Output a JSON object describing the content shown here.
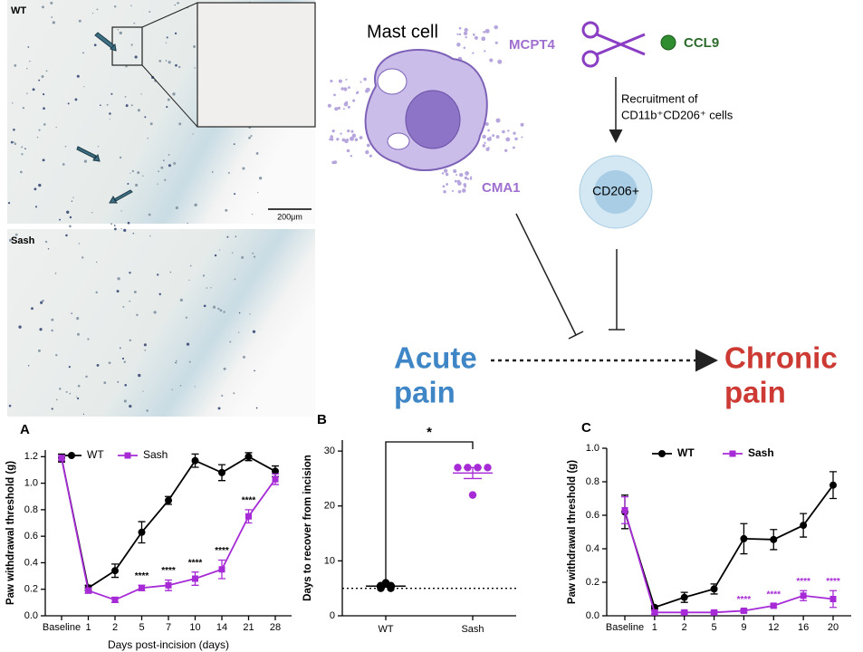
{
  "histology": {
    "top_label": "WT",
    "bottom_label": "Sash",
    "scale_bar": "200μm"
  },
  "diagram": {
    "mast_cell": "Mast cell",
    "mcpt4": "MCPT4",
    "ccl9": "CCL9",
    "cma1": "CMA1",
    "recruitment_line1": "Recruitment of",
    "recruitment_line2": "CD11b⁺CD206⁺ cells",
    "cd206": "CD206+",
    "acute_1": "Acute",
    "acute_2": "pain",
    "chronic_1": "Chronic",
    "chronic_2": "pain"
  },
  "chart_data": [
    {
      "type": "line",
      "panel": "A",
      "ylabel": "Paw withdrawal threshold (g)",
      "xlabel": "Days post-incision (days)",
      "categories": [
        "Baseline",
        "1",
        "2",
        "5",
        "7",
        "10",
        "14",
        "21",
        "28"
      ],
      "ylim": [
        0,
        1.25
      ],
      "yticks": [
        {
          "value": 0,
          "label": "0.0"
        },
        {
          "value": 0.2,
          "label": "0.2"
        },
        {
          "value": 0.4,
          "label": "0.4"
        },
        {
          "value": 0.6,
          "label": "0.6"
        },
        {
          "value": 0.8,
          "label": "0.8"
        },
        {
          "value": 1.0,
          "label": "1.0"
        },
        {
          "value": 1.2,
          "label": "1.2"
        }
      ],
      "legend": "top-left",
      "series": [
        {
          "name": "WT",
          "color": "#000000",
          "marker": "circle",
          "values": [
            1.19,
            0.21,
            0.34,
            0.63,
            0.87,
            1.17,
            1.08,
            1.2,
            1.09
          ],
          "errors": [
            0.03,
            0.02,
            0.05,
            0.08,
            0.03,
            0.05,
            0.06,
            0.03,
            0.04
          ]
        },
        {
          "name": "Sash",
          "color": "#a62bd6",
          "marker": "square",
          "values": [
            1.19,
            0.19,
            0.12,
            0.21,
            0.23,
            0.28,
            0.35,
            0.75,
            1.03
          ],
          "errors": [
            0.02,
            0.02,
            0.02,
            0.02,
            0.04,
            0.05,
            0.07,
            0.05,
            0.04
          ]
        }
      ],
      "annotation_color": "#000000",
      "annotations": [
        {
          "text": "****",
          "category": "5"
        },
        {
          "text": "****",
          "category": "7"
        },
        {
          "text": "****",
          "category": "10"
        },
        {
          "text": "****",
          "category": "14"
        },
        {
          "text": "****",
          "category": "21"
        }
      ]
    },
    {
      "type": "dot",
      "panel": "B",
      "ylabel": "Days to recover from incision",
      "categories": [
        "WT",
        "Sash"
      ],
      "colors": [
        "#000000",
        "#a62bd6"
      ],
      "points": [
        [
          5,
          5,
          5.5,
          5.5,
          6
        ],
        [
          27,
          27,
          27,
          27,
          22
        ]
      ],
      "means": [
        5.4,
        26
      ],
      "errors": [
        0.2,
        1.0
      ],
      "reference_line": 5,
      "significance": "*",
      "ylim": [
        0,
        32
      ],
      "yticks": [
        0,
        10,
        20,
        30
      ]
    },
    {
      "type": "line",
      "panel": "C",
      "ylabel": "Paw withdrawal threshold (g)",
      "categories": [
        "Baseline",
        "1",
        "2",
        "5",
        "9",
        "12",
        "16",
        "20"
      ],
      "ylim": [
        0,
        1.0
      ],
      "yticks": [
        {
          "value": 0,
          "label": "0.0"
        },
        {
          "value": 0.2,
          "label": "0.2"
        },
        {
          "value": 0.4,
          "label": "0.4"
        },
        {
          "value": 0.6,
          "label": "0.6"
        },
        {
          "value": 0.8,
          "label": "0.8"
        },
        {
          "value": 1.0,
          "label": "1.0"
        }
      ],
      "legend": "top",
      "series": [
        {
          "name": "WT",
          "color": "#000000",
          "marker": "circle",
          "values": [
            0.62,
            0.05,
            0.11,
            0.16,
            0.46,
            0.455,
            0.54,
            0.78
          ],
          "errors": [
            0.1,
            0.01,
            0.03,
            0.03,
            0.09,
            0.06,
            0.07,
            0.08
          ]
        },
        {
          "name": "Sash",
          "color": "#a62bd6",
          "marker": "square",
          "values": [
            0.63,
            0.02,
            0.02,
            0.02,
            0.03,
            0.06,
            0.12,
            0.1
          ],
          "errors": [
            0.08,
            0.01,
            0.01,
            0.01,
            0.01,
            0.01,
            0.03,
            0.05
          ]
        }
      ],
      "annotation_color": "#a62bd6",
      "annotations": [
        {
          "text": "****",
          "category": "9"
        },
        {
          "text": "****",
          "category": "12"
        },
        {
          "text": "****",
          "category": "16"
        },
        {
          "text": "****",
          "category": "20"
        }
      ]
    }
  ]
}
